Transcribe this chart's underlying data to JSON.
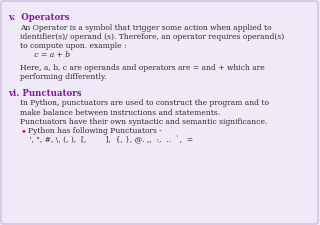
{
  "bg_color": "#f0eaf8",
  "border_color": "#c8b4d8",
  "text_color": "#2a2a2a",
  "heading_color": "#7b2090",
  "bullet_color": "#cc1111",
  "title_v": "v.  Operators",
  "title_vi": "vi. Punctuators",
  "body_v": [
    "An Operator is a symbol that trigger some action when applied to",
    "identifier(s)/ operand (s). Therefore, an operator requires operand(s)",
    "to compute upon. example :",
    "      c = a + b",
    "",
    "Here, a, b, c are operands and operators are = and + which are",
    "performing differently."
  ],
  "body_vi": [
    "In Python, punctuators are used to construct the program and to",
    "make balance between instructions and statements.",
    "Punctuators have their own syntactic and semantic significance.",
    "BULLET:Python has following Punctuators -",
    "    ', \", #, \\, (, ),  [,        ],  {, }, @. ,,  :,  ..  `,  ="
  ],
  "font_size": 5.5,
  "heading_font_size": 6.2
}
